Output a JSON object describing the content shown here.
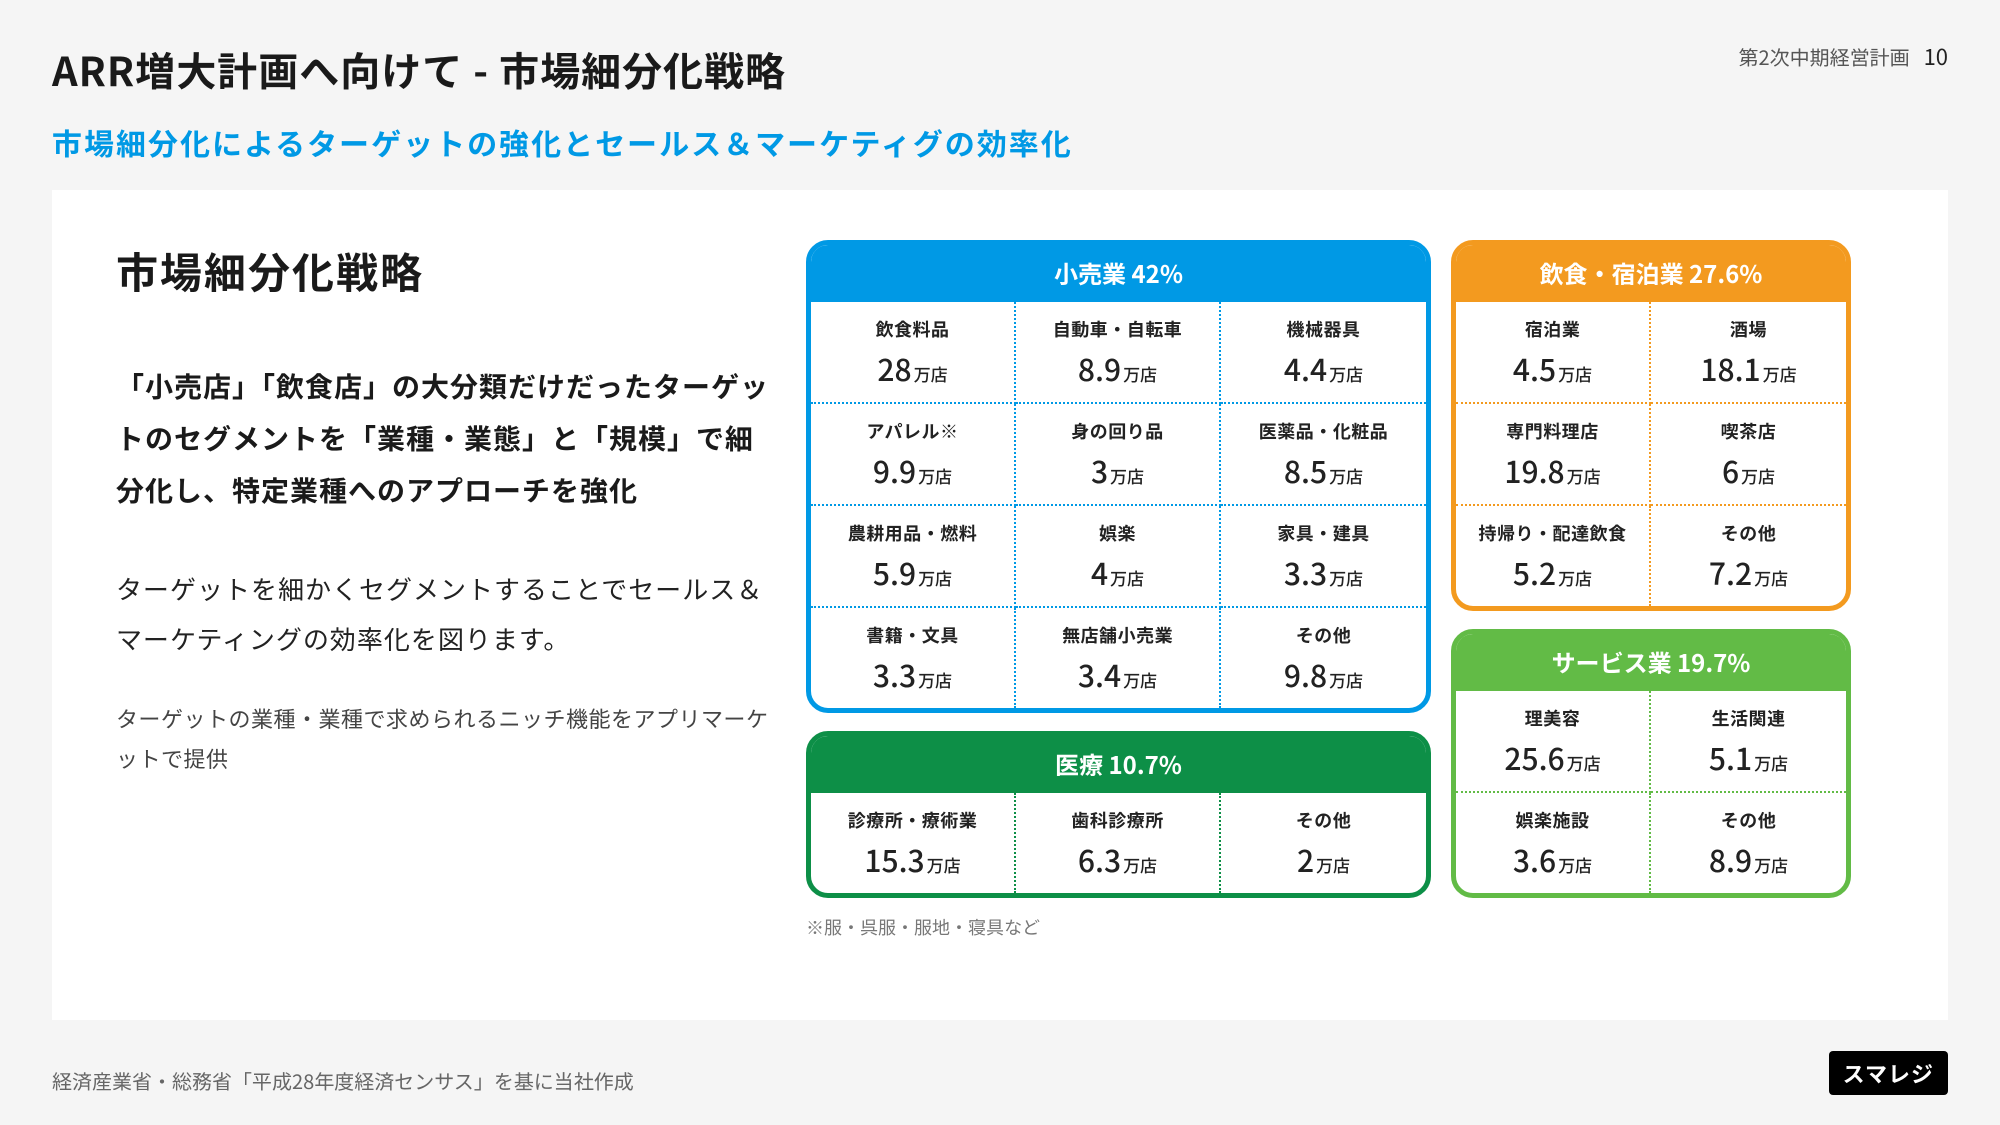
{
  "header": {
    "title": "ARR増大計画へ向けて - 市場細分化戦略",
    "plan_label": "第2次中期経営計画",
    "page_number": "10"
  },
  "subtitle": "市場細分化によるターゲットの強化とセールス＆マーケティグの効率化",
  "left": {
    "heading": "市場細分化戦略",
    "para1": "「小売店」「飲食店」の大分類だけだったターゲットのセグメントを「業種・業態」と「規模」で細分化し、特定業種へのアプローチを強化",
    "para2": "ターゲットを細かくセグメントすることでセールス＆マーケティングの効率化を図ります。",
    "para3": "ターゲットの業種・業種で求められるニッチ機能をアプリマーケットで提供"
  },
  "colors": {
    "retail": "#0099e5",
    "food": "#f39a1f",
    "medical": "#0d8f47",
    "service": "#62bb46"
  },
  "unit": "万店",
  "boxes": {
    "retail": {
      "title": "小売業 42%",
      "cols": 3,
      "cells": [
        {
          "label": "飲食料品",
          "value": "28"
        },
        {
          "label": "自動車・自転車",
          "value": "8.9"
        },
        {
          "label": "機械器具",
          "value": "4.4"
        },
        {
          "label": "アパレル※",
          "value": "9.9"
        },
        {
          "label": "身の回り品",
          "value": "3"
        },
        {
          "label": "医薬品・化粧品",
          "value": "8.5"
        },
        {
          "label": "農耕用品・燃料",
          "value": "5.9"
        },
        {
          "label": "娯楽",
          "value": "4"
        },
        {
          "label": "家具・建具",
          "value": "3.3"
        },
        {
          "label": "書籍・文具",
          "value": "3.3"
        },
        {
          "label": "無店舗小売業",
          "value": "3.4"
        },
        {
          "label": "その他",
          "value": "9.8"
        }
      ]
    },
    "food": {
      "title": "飲食・宿泊業 27.6%",
      "cols": 2,
      "cells": [
        {
          "label": "宿泊業",
          "value": "4.5"
        },
        {
          "label": "酒場",
          "value": "18.1"
        },
        {
          "label": "専門料理店",
          "value": "19.8"
        },
        {
          "label": "喫茶店",
          "value": "6"
        },
        {
          "label": "持帰り・配達飲食",
          "value": "5.2"
        },
        {
          "label": "その他",
          "value": "7.2"
        }
      ]
    },
    "medical": {
      "title": "医療 10.7%",
      "cols": 3,
      "cells": [
        {
          "label": "診療所・療術業",
          "value": "15.3"
        },
        {
          "label": "歯科診療所",
          "value": "6.3"
        },
        {
          "label": "その他",
          "value": "2"
        }
      ]
    },
    "service": {
      "title": "サービス業 19.7%",
      "cols": 2,
      "cells": [
        {
          "label": "理美容",
          "value": "25.6"
        },
        {
          "label": "生活関連",
          "value": "5.1"
        },
        {
          "label": "娯楽施設",
          "value": "3.6"
        },
        {
          "label": "その他",
          "value": "8.9"
        }
      ]
    }
  },
  "footnote": "※服・呉服・服地・寝具など",
  "source": "経済産業省・総務省「平成28年度経済センサス」を基に当社作成",
  "logo": "スマレジ"
}
